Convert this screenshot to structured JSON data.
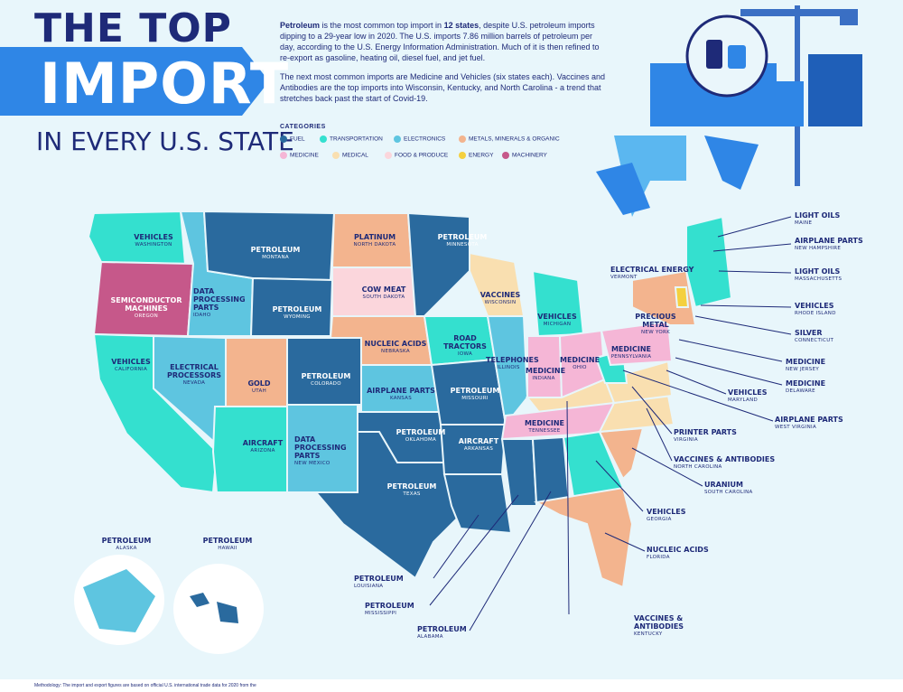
{
  "header": {
    "title_line1": "THE TOP",
    "title_line2": "IMPORT",
    "title_line3": "IN EVERY U.S. STATE"
  },
  "intro": {
    "para1_bold1": "Petroleum",
    "para1_a": " is the most common top import in ",
    "para1_bold2": "12 states",
    "para1_b": ", despite U.S. petroleum imports dipping to a 29-year low in 2020. The U.S. imports 7.86 million barrels of petroleum per day, according to the U.S. Energy Information Administration. Much of it is then refined to re-export as gasoline, heating oil, diesel fuel, and jet fuel.",
    "para2": "The next most common imports are Medicine and Vehicles (six states each). Vaccines and Antibodies are the top imports into Wisconsin, Kentucky, and North Carolina - a trend that stretches back past the start of Covid-19."
  },
  "legend": {
    "title": "CATEGORIES",
    "items": [
      {
        "label": "FUEL",
        "color": "#2a6a9e"
      },
      {
        "label": "TRANSPORTATION",
        "color": "#34e0cf"
      },
      {
        "label": "ELECTRONICS",
        "color": "#5ec5e0"
      },
      {
        "label": "METALS, MINERALS & ORGANIC",
        "color": "#f3b48e"
      },
      {
        "label": "MEDICINE",
        "color": "#f5b6d6"
      },
      {
        "label": "MEDICAL",
        "color": "#f9dfb0"
      },
      {
        "label": "FOOD & PRODUCE",
        "color": "#fbd6dc"
      },
      {
        "label": "ENERGY",
        "color": "#f4d03f"
      },
      {
        "label": "MACHINERY",
        "color": "#c6588a"
      }
    ]
  },
  "states": {
    "washington": {
      "item": "VEHICLES",
      "state": "WASHINGTON"
    },
    "oregon": {
      "item": "SEMICONDUCTOR MACHINES",
      "state": "OREGON"
    },
    "california": {
      "item": "VEHICLES",
      "state": "CALIFORNIA"
    },
    "idaho": {
      "item": "DATA PROCESSING PARTS",
      "state": "IDAHO"
    },
    "nevada": {
      "item": "ELECTRICAL PROCESSORS",
      "state": "NEVADA"
    },
    "montana": {
      "item": "PETROLEUM",
      "state": "MONTANA"
    },
    "wyoming": {
      "item": "PETROLEUM",
      "state": "WYOMING"
    },
    "utah": {
      "item": "GOLD",
      "state": "UTAH"
    },
    "arizona": {
      "item": "AIRCRAFT",
      "state": "ARIZONA"
    },
    "colorado": {
      "item": "PETROLEUM",
      "state": "COLORADO"
    },
    "new_mexico": {
      "item": "DATA PROCESSING PARTS",
      "state": "NEW MEXICO"
    },
    "north_dakota": {
      "item": "PLATINUM",
      "state": "NORTH DAKOTA"
    },
    "south_dakota": {
      "item": "COW MEAT",
      "state": "SOUTH DAKOTA"
    },
    "nebraska": {
      "item": "NUCLEIC ACIDS",
      "state": "NEBRASKA"
    },
    "kansas": {
      "item": "AIRPLANE PARTS",
      "state": "KANSAS"
    },
    "oklahoma": {
      "item": "PETROLEUM",
      "state": "OKLAHOMA"
    },
    "texas": {
      "item": "PETROLEUM",
      "state": "TEXAS"
    },
    "minnesota": {
      "item": "PETROLEUM",
      "state": "MINNESOTA"
    },
    "iowa": {
      "item": "ROAD TRACTORS",
      "state": "IOWA"
    },
    "missouri": {
      "item": "PETROLEUM",
      "state": "MISSOURI"
    },
    "arkansas": {
      "item": "AIRCRAFT",
      "state": "ARKANSAS"
    },
    "wisconsin": {
      "item": "VACCINES",
      "state": "WISCONSIN"
    },
    "illinois": {
      "item": "TELEPHONES",
      "state": "ILLINOIS"
    },
    "michigan": {
      "item": "VEHICLES",
      "state": "MICHIGAN"
    },
    "indiana": {
      "item": "MEDICINE",
      "state": "INDIANA"
    },
    "ohio": {
      "item": "MEDICINE",
      "state": "OHIO"
    },
    "tennessee": {
      "item": "MEDICINE",
      "state": "TENNESSEE"
    },
    "new_york": {
      "item": "PRECIOUS METAL",
      "state": "NEW YORK"
    },
    "pennsylvania": {
      "item": "MEDICINE",
      "state": "PENNSYLVANIA"
    },
    "alaska": {
      "item": "PETROLEUM",
      "state": "ALASKA"
    },
    "hawaii": {
      "item": "PETROLEUM",
      "state": "HAWAII"
    }
  },
  "callouts_right": [
    {
      "item": "LIGHT OILS",
      "state": "MAINE"
    },
    {
      "item": "AIRPLANE PARTS",
      "state": "NEW HAMPSHIRE"
    },
    {
      "item": "LIGHT OILS",
      "state": "MASSACHUSETTS"
    },
    {
      "item": "VEHICLES",
      "state": "RHODE ISLAND"
    },
    {
      "item": "SILVER",
      "state": "CONNECTICUT"
    },
    {
      "item": "MEDICINE",
      "state": "NEW JERSEY"
    },
    {
      "item": "MEDICINE",
      "state": "DELAWARE"
    },
    {
      "item": "VEHICLES",
      "state": "MARYLAND"
    },
    {
      "item": "AIRPLANE PARTS",
      "state": "WEST VIRGINIA"
    },
    {
      "item": "PRINTER PARTS",
      "state": "VIRGINIA"
    },
    {
      "item": "VACCINES & ANTIBODIES",
      "state": "NORTH CAROLINA"
    },
    {
      "item": "URANIUM",
      "state": "SOUTH CAROLINA"
    },
    {
      "item": "VEHICLES",
      "state": "GEORGIA"
    },
    {
      "item": "NUCLEIC ACIDS",
      "state": "FLORIDA"
    },
    {
      "item": "VACCINES & ANTIBODIES",
      "state": "KENTUCKY"
    }
  ],
  "callout_vermont": {
    "item": "ELECTRICAL ENERGY",
    "state": "VERMONT"
  },
  "callouts_bottom": [
    {
      "item": "PETROLEUM",
      "state": "LOUISIANA"
    },
    {
      "item": "PETROLEUM",
      "state": "MISSISSIPPI"
    },
    {
      "item": "PETROLEUM",
      "state": "ALABAMA"
    }
  ],
  "footer": {
    "methodology": "Methodology: The import and export figures are based on official U.S. international trade data for 2020 from the"
  }
}
